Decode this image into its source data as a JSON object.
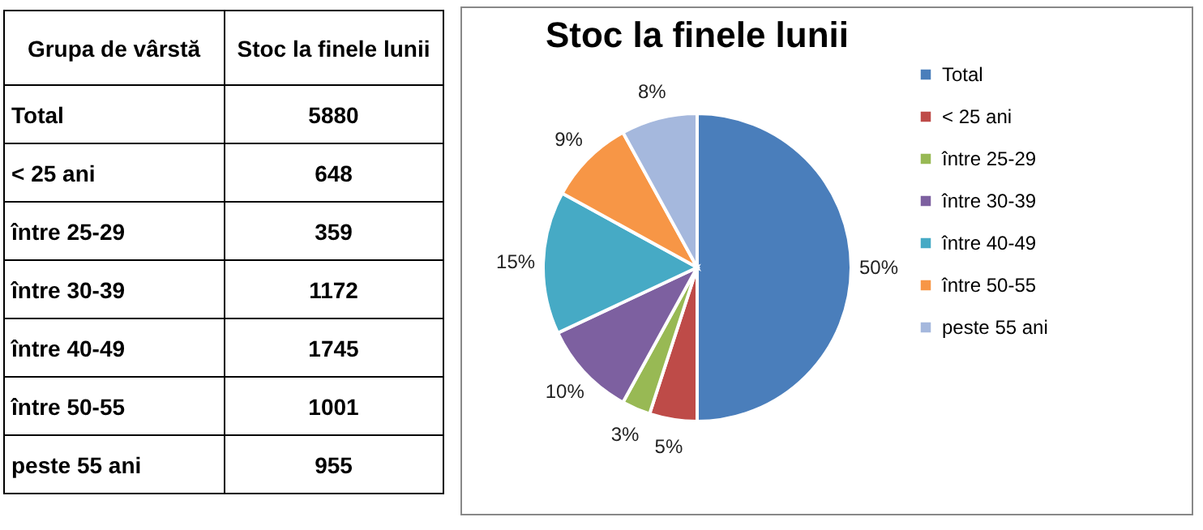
{
  "chart_data": [
    {
      "type": "other",
      "annotations": [
        "Grupa de vârstă",
        "Stoc la finele lunii",
        "Total",
        "5880",
        "< 25 ani",
        "648",
        "între 25-29",
        "359",
        "între 30-39",
        "1172",
        "între 40-49",
        "1745",
        "între 50-55",
        "1001",
        "peste 55 ani",
        "955"
      ]
    },
    {
      "type": "pie",
      "title": "Stoc la finele lunii",
      "categories": [
        "Total",
        "< 25 ani",
        "între 25-29",
        "între 30-39",
        "între 40-49",
        "între 50-55",
        "peste 55 ani"
      ],
      "values": [
        50,
        5,
        3,
        10,
        15,
        9,
        8
      ],
      "value_labels": [
        "50%",
        "5%",
        "3%",
        "10%",
        "15%",
        "9%",
        "8%"
      ],
      "colors": [
        "#4a7ebb",
        "#be4b48",
        "#98b954",
        "#7d60a0",
        "#46aac5",
        "#f79646",
        "#a5b8dd"
      ],
      "legend": "right"
    }
  ]
}
